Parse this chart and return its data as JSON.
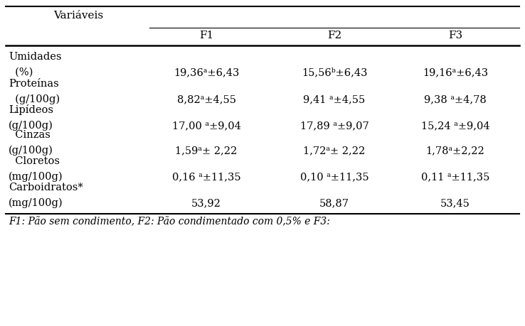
{
  "header_col": "Variáveis",
  "columns": [
    "F1",
    "F2",
    "F3"
  ],
  "rows": [
    {
      "label_line1": "Umidades",
      "label_line2": "  (%)",
      "f1": "19,36ᵃ±6,43",
      "f2": "15,56ᵇ±6,43",
      "f3": "19,16ᵃ±6,43"
    },
    {
      "label_line1": "Proteínas",
      "label_line2": "  (g/100g)",
      "f1": "8,82ᵃ±4,55",
      "f2": "9,41 ᵃ±4,55",
      "f3": "9,38 ᵃ±4,78"
    },
    {
      "label_line1": "Lipídeos",
      "label_line2": "(g/100g)",
      "f1": "17,00 ᵃ±9,04",
      "f2": "17,89 ᵃ±9,07",
      "f3": "15,24 ᵃ±9,04"
    },
    {
      "label_line1": "  Cinzas",
      "label_line2": "(g/100g)",
      "f1": "1,59ᵃ± 2,22",
      "f2": "1,72ᵃ± 2,22",
      "f3": "1,78ᵃ±2,22"
    },
    {
      "label_line1": "  Cloretos",
      "label_line2": "(mg/100g)",
      "f1": "0,16 ᵃ±11,35",
      "f2": "0,10 ᵃ±11,35",
      "f3": "0,11 ᵃ±11,35"
    },
    {
      "label_line1": "Carboidratos*",
      "label_line2": "(mg/100g)",
      "f1": "53,92",
      "f2": "58,87",
      "f3": "53,45"
    }
  ],
  "footnote": "F1: Pão sem condimento, F2: Pão condimentado com 0,5% e F3:",
  "bg_color": "#ffffff",
  "text_color": "#000000",
  "font_size": 10.5,
  "header_font_size": 11
}
